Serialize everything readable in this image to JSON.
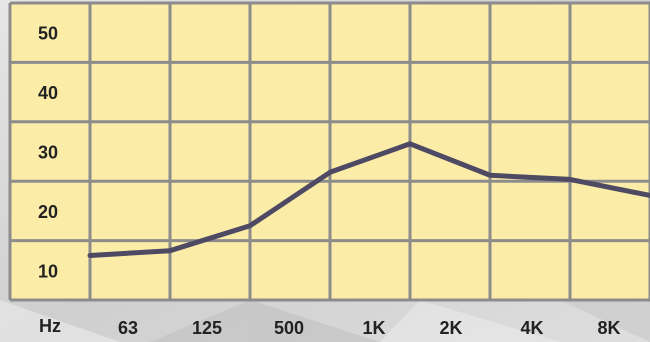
{
  "chart_data": {
    "type": "line",
    "title": "",
    "xlabel": "",
    "ylabel": "",
    "x_unit_label": "Hz",
    "categories": [
      "63",
      "125",
      "500",
      "1K",
      "2K",
      "4K",
      "8K"
    ],
    "y_ticks": [
      "50",
      "40",
      "30",
      "20",
      "10"
    ],
    "y_tick_values": [
      50,
      40,
      30,
      20,
      10
    ],
    "ylim": [
      5,
      55
    ],
    "grid": true,
    "legend": "none",
    "series": [
      {
        "x": [
          "",
          "63",
          "125",
          "500",
          "1K",
          "2K",
          "4K",
          "8K"
        ],
        "values": [
          12.5,
          13.3,
          17.5,
          26.5,
          31.3,
          26,
          25.3,
          22.6
        ]
      }
    ]
  },
  "colors": {
    "background": "#d9d9d9",
    "plot_fill": "#fbeda8",
    "grid": "#8c8c8c",
    "line": "#4e4a63",
    "text": "#222222"
  }
}
